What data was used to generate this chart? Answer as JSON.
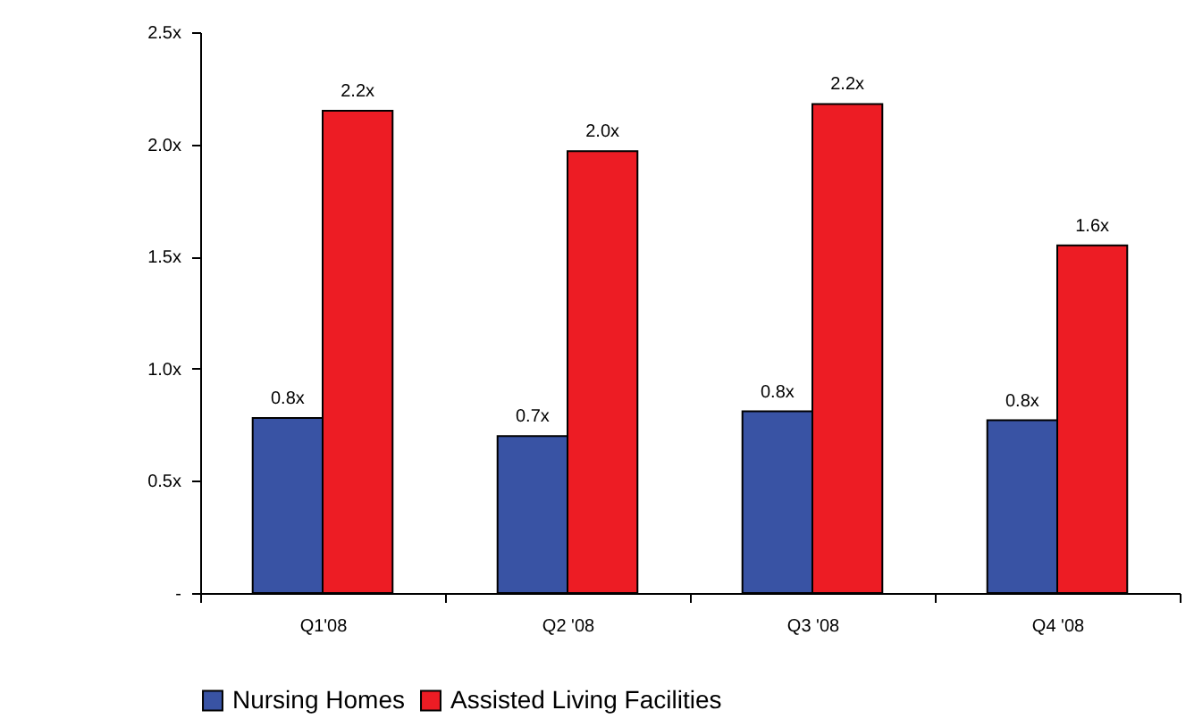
{
  "chart_data": {
    "type": "bar",
    "categories": [
      "Q1'08",
      "Q2 '08",
      "Q3 '08",
      "Q4 '08"
    ],
    "series": [
      {
        "name": "Nursing Homes",
        "color": "#3953a4",
        "values": [
          0.78,
          0.7,
          0.81,
          0.77
        ],
        "value_labels": [
          "0.8x",
          "0.7x",
          "0.8x",
          "0.8x"
        ]
      },
      {
        "name": "Assisted Living Facilities",
        "color": "#ed1c24",
        "values": [
          2.15,
          1.97,
          2.18,
          1.55
        ],
        "value_labels": [
          "2.2x",
          "2.0x",
          "2.2x",
          "1.6x"
        ]
      }
    ],
    "ylim": [
      0,
      2.5
    ],
    "yticks": [
      {
        "value": 0,
        "label": "-"
      },
      {
        "value": 0.5,
        "label": "0.5x"
      },
      {
        "value": 1,
        "label": "1.0x"
      },
      {
        "value": 1.5,
        "label": "1.5x"
      },
      {
        "value": 2,
        "label": "2.0x"
      },
      {
        "value": 2.5,
        "label": "2.5x"
      }
    ],
    "grid": false,
    "legend": "bottom"
  }
}
